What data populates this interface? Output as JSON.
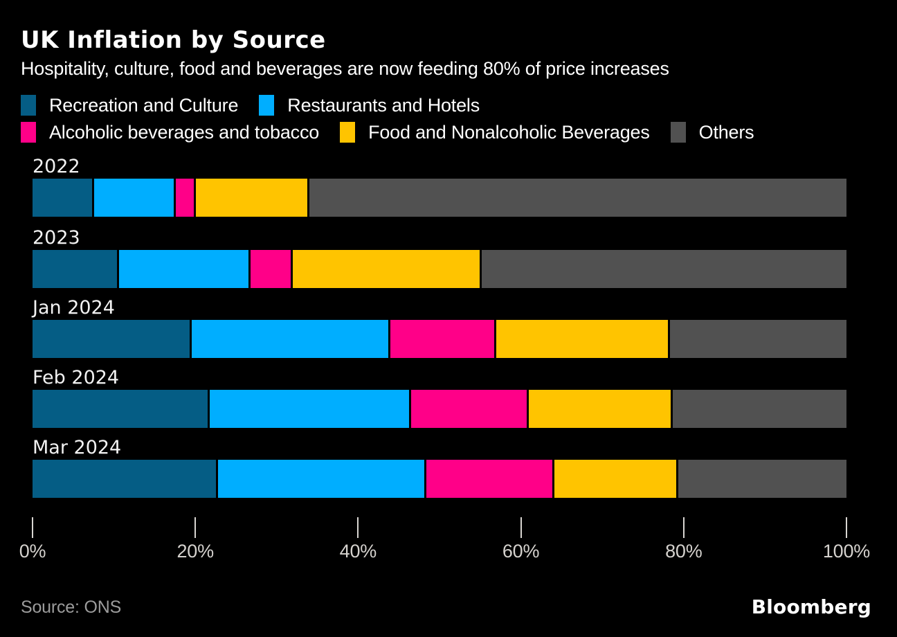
{
  "header": {
    "title": "UK Inflation by Source",
    "subtitle": "Hospitality, culture, food and beverages are now feeding 80% of price increases"
  },
  "chart_data": {
    "type": "bar",
    "orientation": "horizontal-stacked",
    "title": "UK Inflation by Source",
    "subtitle": "Hospitality, culture, food and beverages are now feeding 80% of price increases",
    "unit": "% share of price increases",
    "categories": [
      "2022",
      "2023",
      "Jan 2024",
      "Feb 2024",
      "Mar 2024"
    ],
    "series": [
      {
        "name": "Recreation and Culture",
        "color": "#055d85",
        "values": [
          7.6,
          10.6,
          19.6,
          21.8,
          22.8
        ]
      },
      {
        "name": "Restaurants and Hotels",
        "color": "#00aeff",
        "values": [
          10.0,
          16.2,
          24.4,
          24.7,
          25.6
        ]
      },
      {
        "name": "Alcoholic beverages and tobacco",
        "color": "#ff0088",
        "values": [
          2.5,
          5.2,
          13.0,
          14.5,
          15.7
        ]
      },
      {
        "name": "Food and Nonalcoholic Beverages",
        "color": "#ffc400",
        "values": [
          13.9,
          23.2,
          21.3,
          17.7,
          15.2
        ]
      },
      {
        "name": "Others",
        "color": "#515151",
        "values": [
          66.0,
          44.8,
          21.7,
          21.3,
          20.7
        ]
      }
    ],
    "xlim": [
      0,
      100
    ],
    "x_ticks": [
      {
        "label": "0%",
        "value": 0
      },
      {
        "label": "20%",
        "value": 20
      },
      {
        "label": "40%",
        "value": 40
      },
      {
        "label": "60%",
        "value": 60
      },
      {
        "label": "80%",
        "value": 80
      },
      {
        "label": "100%",
        "value": 100
      }
    ],
    "legend_rows": [
      [
        0,
        1
      ],
      [
        2,
        3,
        4
      ]
    ],
    "legend_position": "top",
    "grid": false
  },
  "footer": {
    "source": "Source: ONS",
    "brand": "Bloomberg"
  },
  "colors": {
    "background": "#000000",
    "text": "#ffffff",
    "axis_text": "#d5d2ce",
    "tick": "#d9d6d2",
    "source_text": "#9c9c9c",
    "segment_gap": "#000000"
  }
}
